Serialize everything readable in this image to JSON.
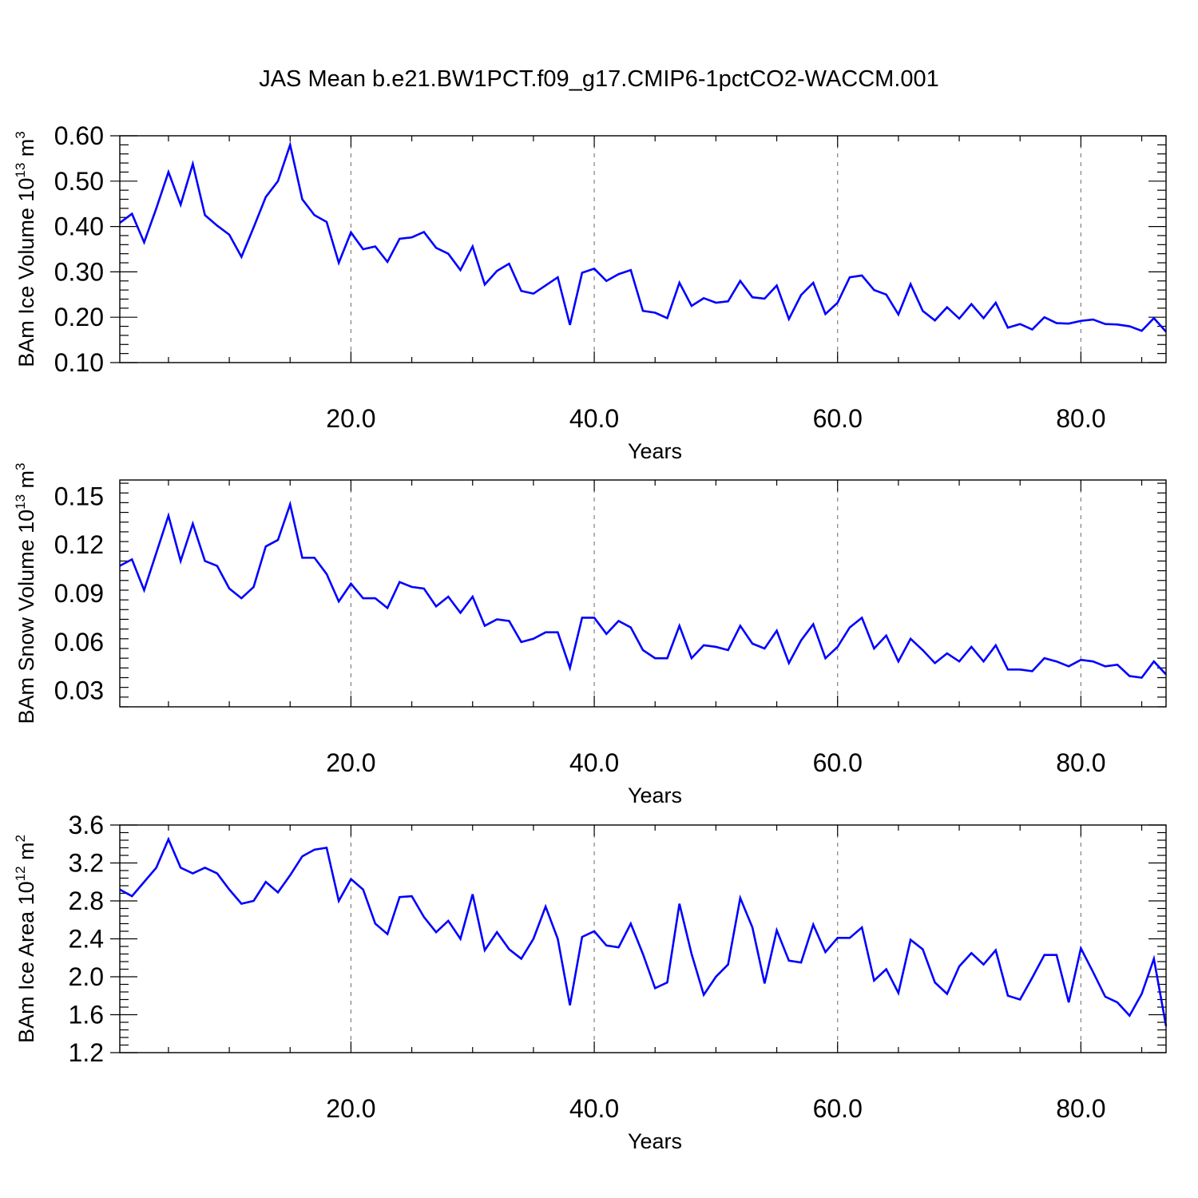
{
  "chart_title": "JAS Mean b.e21.BW1PCT.f09_g17.CMIP6-1pctCO2-WACCM.001",
  "colors": {
    "line": "#0000ff",
    "axes": "#000000",
    "grid": "#808080"
  },
  "chart_data": [
    {
      "type": "line",
      "title": "",
      "xlabel": "Years",
      "ylabel": "BAm Ice Volume 10",
      "ylabel_exp": "13",
      "ylabel_unit": "m",
      "ylabel_unit_exp": "3",
      "xlim": [
        1,
        87
      ],
      "ylim": [
        0.1,
        0.6
      ],
      "xticks": [
        20,
        40,
        60,
        80
      ],
      "xtick_labels": [
        "20.0",
        "40.0",
        "60.0",
        "80.0"
      ],
      "yticks": [
        0.1,
        0.2,
        0.3,
        0.4,
        0.5,
        0.6
      ],
      "ytick_labels": [
        "0.10",
        "0.20",
        "0.30",
        "0.40",
        "0.50",
        "0.60"
      ],
      "grid": "vertical dashed at x ticks",
      "series": [
        {
          "x_start": 1,
          "values": [
            0.408,
            0.428,
            0.365,
            0.44,
            0.52,
            0.448,
            0.538,
            0.425,
            0.402,
            0.382,
            0.333,
            0.398,
            0.465,
            0.5,
            0.58,
            0.46,
            0.425,
            0.41,
            0.32,
            0.387,
            0.35,
            0.356,
            0.322,
            0.373,
            0.376,
            0.388,
            0.353,
            0.34,
            0.304,
            0.356,
            0.272,
            0.302,
            0.318,
            0.258,
            0.252,
            0.27,
            0.288,
            0.183,
            0.298,
            0.307,
            0.28,
            0.295,
            0.304,
            0.214,
            0.21,
            0.198,
            0.276,
            0.225,
            0.242,
            0.232,
            0.235,
            0.28,
            0.244,
            0.241,
            0.27,
            0.196,
            0.249,
            0.276,
            0.207,
            0.232,
            0.288,
            0.292,
            0.26,
            0.25,
            0.206,
            0.273,
            0.214,
            0.193,
            0.222,
            0.197,
            0.229,
            0.198,
            0.232,
            0.177,
            0.185,
            0.173,
            0.2,
            0.187,
            0.186,
            0.192,
            0.195,
            0.185,
            0.184,
            0.18,
            0.17,
            0.198,
            0.168
          ]
        }
      ]
    },
    {
      "type": "line",
      "title": "",
      "xlabel": "Years",
      "ylabel": "BAm Snow Volume 10",
      "ylabel_exp": "13",
      "ylabel_unit": "m",
      "ylabel_unit_exp": "3",
      "xlim": [
        1,
        87
      ],
      "ylim": [
        0.02,
        0.16
      ],
      "xticks": [
        20,
        40,
        60,
        80
      ],
      "xtick_labels": [
        "20.0",
        "40.0",
        "60.0",
        "80.0"
      ],
      "yticks": [
        0.03,
        0.06,
        0.09,
        0.12,
        0.15
      ],
      "ytick_labels": [
        "0.03",
        "0.06",
        "0.09",
        "0.12",
        "0.15"
      ],
      "grid": "vertical dashed at x ticks",
      "series": [
        {
          "x_start": 1,
          "values": [
            0.107,
            0.111,
            0.092,
            0.115,
            0.138,
            0.11,
            0.133,
            0.11,
            0.107,
            0.093,
            0.087,
            0.094,
            0.119,
            0.123,
            0.145,
            0.112,
            0.112,
            0.102,
            0.085,
            0.096,
            0.087,
            0.087,
            0.081,
            0.097,
            0.094,
            0.093,
            0.082,
            0.088,
            0.078,
            0.088,
            0.07,
            0.074,
            0.073,
            0.06,
            0.062,
            0.066,
            0.066,
            0.044,
            0.075,
            0.075,
            0.065,
            0.073,
            0.069,
            0.055,
            0.05,
            0.05,
            0.07,
            0.05,
            0.058,
            0.057,
            0.055,
            0.07,
            0.059,
            0.056,
            0.067,
            0.047,
            0.061,
            0.071,
            0.05,
            0.057,
            0.069,
            0.075,
            0.056,
            0.064,
            0.048,
            0.062,
            0.055,
            0.047,
            0.053,
            0.048,
            0.057,
            0.048,
            0.058,
            0.043,
            0.043,
            0.042,
            0.05,
            0.048,
            0.045,
            0.049,
            0.048,
            0.045,
            0.046,
            0.039,
            0.038,
            0.048,
            0.04
          ]
        }
      ]
    },
    {
      "type": "line",
      "title": "",
      "xlabel": "Years",
      "ylabel": "BAm Ice Area 10",
      "ylabel_exp": "12",
      "ylabel_unit": "m",
      "ylabel_unit_exp": "2",
      "xlim": [
        1,
        87
      ],
      "ylim": [
        1.2,
        3.6
      ],
      "xticks": [
        20,
        40,
        60,
        80
      ],
      "xtick_labels": [
        "20.0",
        "40.0",
        "60.0",
        "80.0"
      ],
      "yticks": [
        1.2,
        1.6,
        2.0,
        2.4,
        2.8,
        3.2,
        3.6
      ],
      "ytick_labels": [
        "1.2",
        "1.6",
        "2.0",
        "2.4",
        "2.8",
        "3.2",
        "3.6"
      ],
      "grid": "vertical dashed at x ticks",
      "series": [
        {
          "x_start": 1,
          "values": [
            2.92,
            2.85,
            3.0,
            3.15,
            3.45,
            3.15,
            3.09,
            3.15,
            3.09,
            2.92,
            2.77,
            2.8,
            3.0,
            2.89,
            3.07,
            3.27,
            3.34,
            3.36,
            2.8,
            3.03,
            2.92,
            2.56,
            2.45,
            2.84,
            2.85,
            2.63,
            2.47,
            2.59,
            2.4,
            2.87,
            2.28,
            2.47,
            2.29,
            2.19,
            2.4,
            2.74,
            2.4,
            1.7,
            2.42,
            2.48,
            2.33,
            2.31,
            2.56,
            2.24,
            1.88,
            1.94,
            2.77,
            2.24,
            1.81,
            2.0,
            2.13,
            2.83,
            2.52,
            1.93,
            2.49,
            2.17,
            2.15,
            2.55,
            2.26,
            2.41,
            2.41,
            2.52,
            1.96,
            2.08,
            1.83,
            2.39,
            2.29,
            1.94,
            1.82,
            2.11,
            2.25,
            2.13,
            2.28,
            1.8,
            1.76,
            1.99,
            2.23,
            2.23,
            1.73,
            2.3,
            2.05,
            1.79,
            1.73,
            1.59,
            1.82,
            2.19,
            1.48
          ]
        }
      ]
    }
  ]
}
